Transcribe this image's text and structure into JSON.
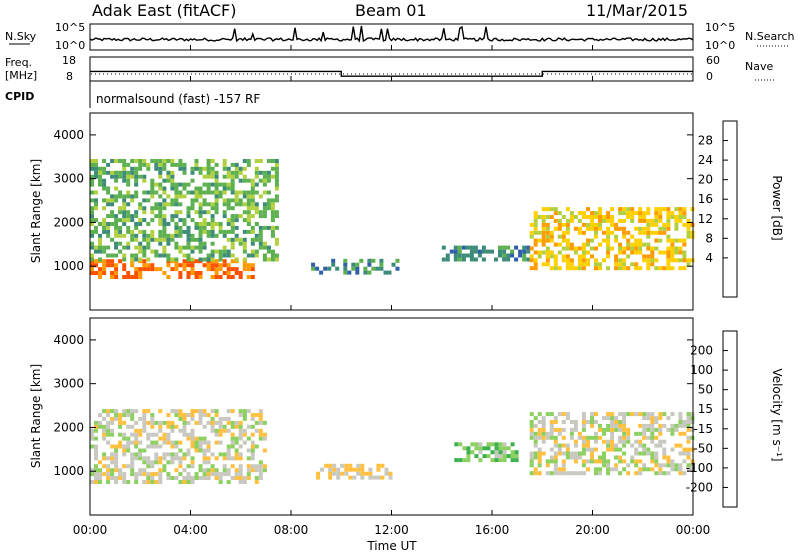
{
  "header": {
    "title": "Adak East (fitACF)",
    "beam": "Beam 01",
    "date": "11/Mar/2015"
  },
  "top_panels": {
    "nsky_label": "N.Sky",
    "nsky_ticks": [
      "10^5",
      "10^0"
    ],
    "nsearch_label": "N.Search",
    "nsearch_ticks": [
      "10^5",
      "10^0"
    ],
    "freq_label": "Freq.",
    "freq_unit": "[MHz]",
    "freq_ticks": [
      "18",
      "8"
    ],
    "nave_label": "Nave",
    "nave_ticks": [
      "60",
      "0"
    ],
    "cpid_label": "CPID",
    "cpid_text": "normalsound (fast) -157 RF"
  },
  "power_panel": {
    "ylabel": "Slant Range [km]",
    "yticks": [
      "4000",
      "3000",
      "2000",
      "1000"
    ],
    "colorbar_label": "Power [dB]",
    "colorbar_ticks": [
      "28",
      "24",
      "20",
      "16",
      "12",
      "8",
      "4"
    ],
    "colors": [
      "#0000ff",
      "#2e5fa8",
      "#3d8c7a",
      "#5cb050",
      "#b0d040",
      "#ffd000",
      "#ff9a00",
      "#ff5000",
      "#ff0000"
    ]
  },
  "velocity_panel": {
    "ylabel": "Slant Range [km]",
    "yticks": [
      "4000",
      "3000",
      "2000",
      "1000"
    ],
    "colorbar_label": "Velocity [m s⁻¹]",
    "colorbar_ticks": [
      "200",
      "100",
      "50",
      "15",
      "-15",
      "-50",
      "-100",
      "-200"
    ],
    "colors": [
      "#1f3fb0",
      "#2d8f9a",
      "#3db050",
      "#8cd060",
      "#c8c8c0",
      "#ffc040",
      "#ff8000",
      "#ff4000",
      "#ff0000"
    ]
  },
  "x_axis": {
    "ticks": [
      "00:00",
      "04:00",
      "08:00",
      "12:00",
      "16:00",
      "20:00",
      "00:00"
    ],
    "label": "Time UT"
  },
  "chart_data": [
    {
      "type": "line",
      "title": "N.Sky / N.Search",
      "x": [
        "00:00",
        "24:00"
      ],
      "ylim": [
        "10^0",
        "10^5"
      ],
      "note": "noise levels near baseline with spikes around 06:00-14:00"
    },
    {
      "type": "line",
      "title": "Freq. [MHz] / Nave",
      "x": [
        "00:00",
        "10:00",
        "18:00",
        "24:00"
      ],
      "series": [
        {
          "name": "Freq.",
          "values": [
            12,
            10,
            12,
            12
          ]
        }
      ],
      "ylim": [
        8,
        18
      ]
    },
    {
      "type": "heatmap",
      "title": "Power [dB]",
      "xlabel": "Time UT",
      "ylabel": "Slant Range [km]",
      "xlim": [
        "00:00",
        "24:00"
      ],
      "ylim": [
        0,
        4500
      ],
      "clim": [
        0,
        32
      ],
      "regions": [
        {
          "t_start": 0.0,
          "t_end": 6.5,
          "r_low": 800,
          "r_high": 1200,
          "power": 26
        },
        {
          "t_start": 0.0,
          "t_end": 7.5,
          "r_low": 1200,
          "r_high": 3500,
          "power": 12
        },
        {
          "t_start": 8.8,
          "t_end": 12.2,
          "r_low": 900,
          "r_high": 1200,
          "power": 8
        },
        {
          "t_start": 14.0,
          "t_end": 17.5,
          "r_low": 1200,
          "r_high": 1500,
          "power": 8
        },
        {
          "t_start": 17.5,
          "t_end": 24.0,
          "r_low": 1000,
          "r_high": 2400,
          "power": 20
        }
      ]
    },
    {
      "type": "heatmap",
      "title": "Velocity [m s⁻¹]",
      "xlabel": "Time UT",
      "ylabel": "Slant Range [km]",
      "xlim": [
        "00:00",
        "24:00"
      ],
      "ylim": [
        0,
        4500
      ],
      "clim": [
        -200,
        200
      ],
      "regions": [
        {
          "t_start": 0.0,
          "t_end": 7.0,
          "r_low": 800,
          "r_high": 2500,
          "velocity": 0
        },
        {
          "t_start": 9.0,
          "t_end": 12.0,
          "r_low": 900,
          "r_high": 1200,
          "velocity": 25
        },
        {
          "t_start": 14.5,
          "t_end": 17.0,
          "r_low": 1300,
          "r_high": 1700,
          "velocity": -60
        },
        {
          "t_start": 17.5,
          "t_end": 24.0,
          "r_low": 1000,
          "r_high": 2400,
          "velocity": 0
        }
      ]
    }
  ]
}
